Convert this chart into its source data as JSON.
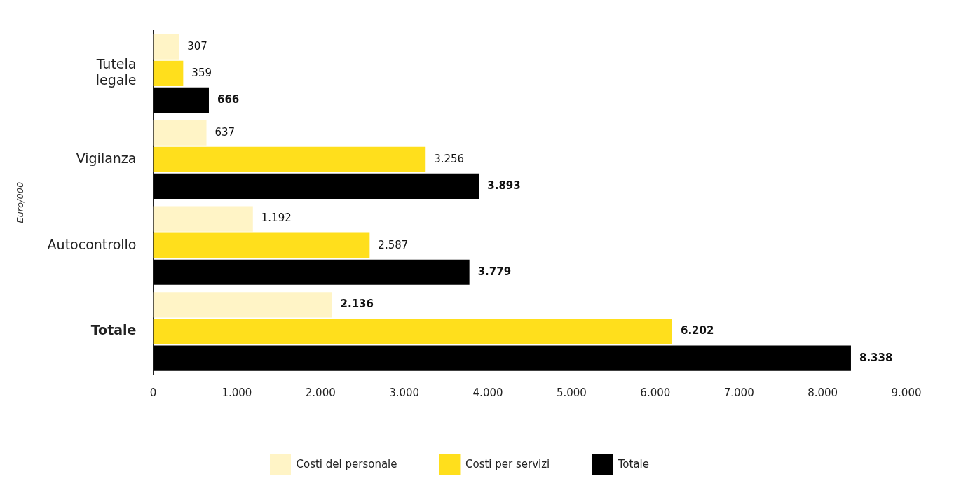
{
  "chart_data": {
    "type": "bar",
    "orientation": "horizontal",
    "ylabel": "Euro/000",
    "categories": [
      "Tutela legale",
      "Vigilanza",
      "Autocontrollo",
      "Totale"
    ],
    "series": [
      {
        "name": "Costi del personale",
        "color": "#fff4c6",
        "values": [
          307,
          637,
          1192,
          2136
        ],
        "value_labels": [
          "307",
          "637",
          "1.192",
          "2.136"
        ]
      },
      {
        "name": "Costi per servizi",
        "color": "#ffdf1c",
        "values": [
          359,
          3256,
          2587,
          6202
        ],
        "value_labels": [
          "359",
          "3.256",
          "2.587",
          "6.202"
        ]
      },
      {
        "name": "Totale",
        "color": "#000000",
        "values": [
          666,
          3893,
          3779,
          8338
        ],
        "value_labels": [
          "666",
          "3.893",
          "3.779",
          "8.338"
        ]
      }
    ],
    "xlim": [
      0,
      9000
    ],
    "xticks": [
      0,
      {
        "value": 1000,
        "label": "1.000"
      },
      {
        "value": 2000,
        "label": "2.000"
      },
      {
        "value": 3000,
        "label": "3.000"
      },
      {
        "value": 4000,
        "label": "4.000"
      },
      {
        "value": 5000,
        "label": "5.000"
      },
      {
        "value": 6000,
        "label": "6.000"
      },
      {
        "value": 7000,
        "label": "7.000"
      },
      {
        "value": 8000,
        "label": "8.000"
      },
      {
        "value": 9000,
        "label": "9.000"
      }
    ],
    "grid": false,
    "legend": "bottom"
  }
}
